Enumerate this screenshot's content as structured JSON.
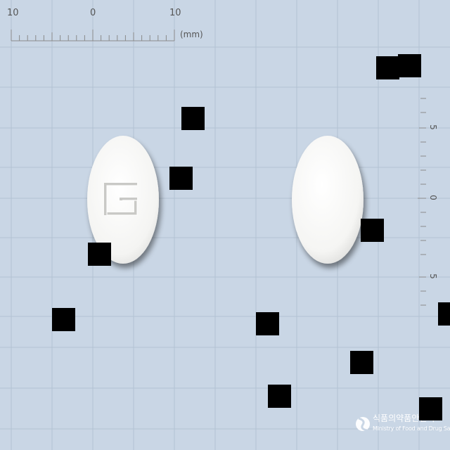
{
  "ruler_top": {
    "labels": [
      "10",
      "0",
      "10"
    ],
    "unit": "(mm)"
  },
  "ruler_right": {
    "labels": [
      "5",
      "0",
      "5"
    ]
  },
  "watermark": {
    "line1": "식품의약품안전처",
    "line2": "Ministry of Food and Drug Safety"
  },
  "pill_left": {
    "imprint": "G"
  },
  "colors": {
    "background": "#c9d6e5",
    "grid": "#b4c3d3",
    "pill": "#f6f6f4"
  }
}
